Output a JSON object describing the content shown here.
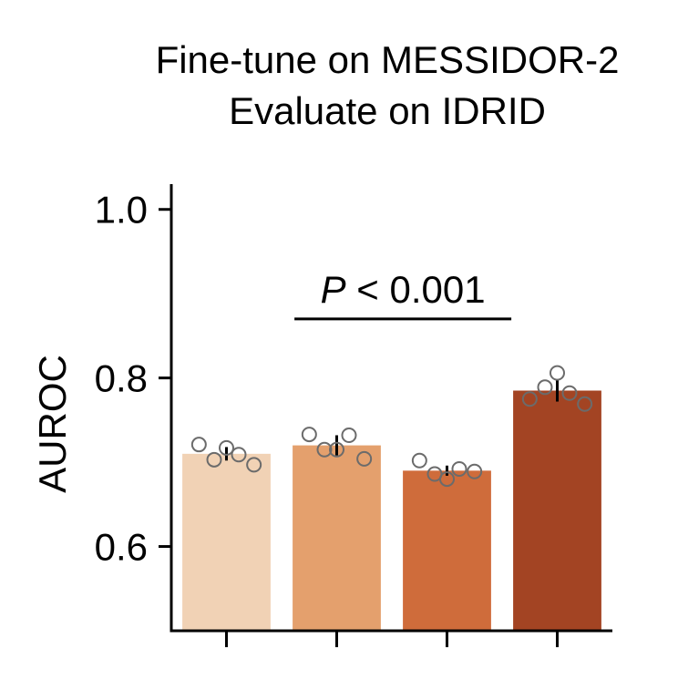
{
  "chart_data": {
    "type": "bar",
    "title_lines": [
      "Fine-tune on MESSIDOR-2",
      "Evaluate on IDRID"
    ],
    "xlabel": "",
    "ylabel": "AUROC",
    "ylim": [
      0.5,
      1.03
    ],
    "yticks": [
      0.6,
      0.8,
      1.0
    ],
    "ytick_labels": [
      "0.6",
      "0.8",
      "1.0"
    ],
    "categories": [
      "",
      "",
      "",
      ""
    ],
    "values": [
      0.71,
      0.72,
      0.69,
      0.785
    ],
    "errors": [
      0.008,
      0.012,
      0.006,
      0.013
    ],
    "colors": [
      "#f1d2b5",
      "#e4a06d",
      "#cf6c3b",
      "#a34423"
    ],
    "points": [
      [
        0.721,
        0.703,
        0.717,
        0.709,
        0.697
      ],
      [
        0.733,
        0.715,
        0.715,
        0.732,
        0.704
      ],
      [
        0.702,
        0.686,
        0.68,
        0.692,
        0.689
      ],
      [
        0.775,
        0.789,
        0.806,
        0.782,
        0.769
      ]
    ],
    "annotation": {
      "italic": "P",
      "rest": " < 0.001",
      "from": 1,
      "to": 3,
      "y": 0.87
    },
    "grid": false,
    "legend": "none"
  }
}
